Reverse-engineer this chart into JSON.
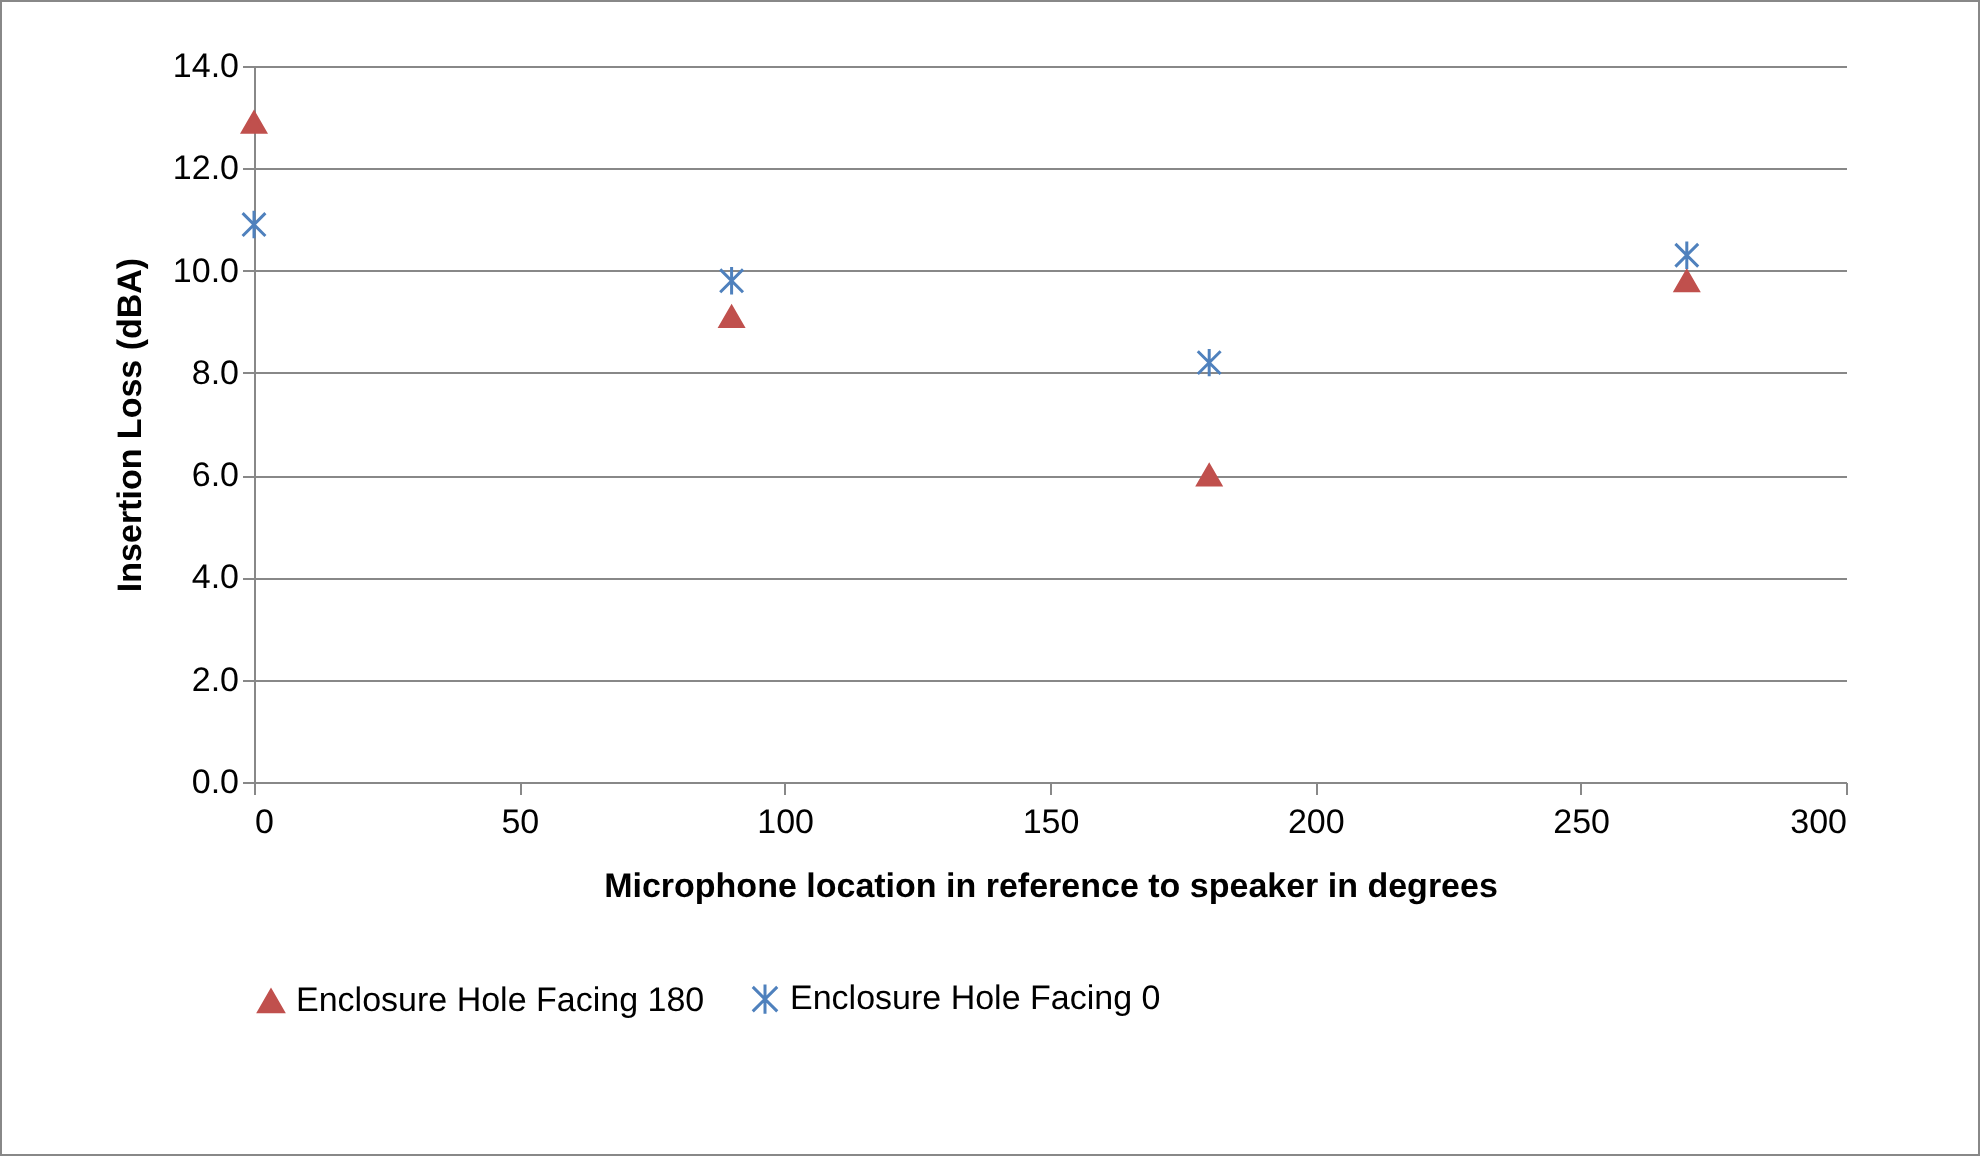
{
  "chart_data": {
    "type": "scatter",
    "xlabel": "Microphone location in reference to speaker in degrees",
    "ylabel": "Insertion Loss (dBA)",
    "x": [
      0,
      90,
      180,
      270
    ],
    "series": [
      {
        "name": "Enclosure Hole Facing 180",
        "color": "#c0504d",
        "marker": "triangle",
        "values": [
          12.9,
          9.1,
          6.0,
          9.8
        ]
      },
      {
        "name": "Enclosure Hole Facing 0",
        "color": "#4f81bd",
        "marker": "cross",
        "values": [
          10.9,
          9.8,
          8.2,
          10.3
        ]
      }
    ],
    "xlim": [
      0,
      300
    ],
    "xticks": [
      0,
      50,
      100,
      150,
      200,
      250,
      300
    ],
    "ylim": [
      0,
      14
    ],
    "yticks": [
      {
        "value": 0,
        "label": "0.0"
      },
      {
        "value": 2,
        "label": "2.0"
      },
      {
        "value": 4,
        "label": "4.0"
      },
      {
        "value": 6,
        "label": "6.0"
      },
      {
        "value": 8,
        "label": "8.0"
      },
      {
        "value": 10,
        "label": "10.0"
      },
      {
        "value": 12,
        "label": "12.0"
      },
      {
        "value": 14,
        "label": "14.0"
      }
    ],
    "grid": "y",
    "legend": "bottom"
  }
}
